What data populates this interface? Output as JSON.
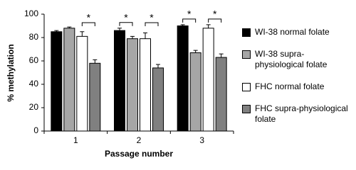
{
  "chart_data": {
    "type": "bar",
    "xlabel": "Passage number",
    "ylabel": "% methylation",
    "categories": [
      "1",
      "2",
      "3"
    ],
    "series": [
      {
        "name": "WI-38 normal folate",
        "color": "#000000",
        "values": [
          85,
          86,
          90
        ],
        "errors": [
          1,
          2,
          1
        ]
      },
      {
        "name": "WI-38 supra-physiological folate",
        "color": "#a6a6a6",
        "values": [
          88,
          79,
          67
        ],
        "errors": [
          1,
          2,
          2
        ]
      },
      {
        "name": "FHC normal folate",
        "color": "#ffffff",
        "values": [
          81,
          79,
          88
        ],
        "errors": [
          4,
          5,
          3
        ]
      },
      {
        "name": "FHC supra-physiological folate",
        "color": "#808080",
        "values": [
          58,
          54,
          63
        ],
        "errors": [
          3,
          3,
          3
        ]
      }
    ],
    "annotations": [
      {
        "label": "*",
        "category": 0,
        "bars": [
          2,
          3
        ]
      },
      {
        "label": "*",
        "category": 1,
        "bars": [
          0,
          1
        ]
      },
      {
        "label": "*",
        "category": 1,
        "bars": [
          2,
          3
        ]
      },
      {
        "label": "*",
        "category": 2,
        "bars": [
          0,
          1
        ]
      },
      {
        "label": "*",
        "category": 2,
        "bars": [
          2,
          3
        ]
      }
    ],
    "ylim": [
      0,
      100
    ],
    "yticks": [
      0,
      20,
      40,
      60,
      80,
      100
    ],
    "grid": false,
    "legend": "right"
  }
}
